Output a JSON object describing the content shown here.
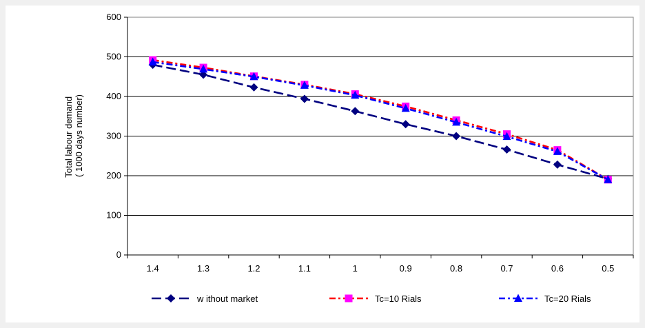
{
  "chart_data": {
    "type": "line",
    "categories": [
      "1.4",
      "1.3",
      "1.2",
      "1.1",
      "1",
      "0.9",
      "0.8",
      "0.7",
      "0.6",
      "0.5"
    ],
    "ylim": [
      0,
      600
    ],
    "yticks": [
      "0",
      "100",
      "200",
      "300",
      "400",
      "500",
      "600"
    ],
    "ylabel": [
      "Total labour demand",
      "( 1000 days number)"
    ],
    "xlabel": "",
    "grid": "horizontal",
    "legend_position": "bottom",
    "series": [
      {
        "name": "w ithout market",
        "color": "#000080",
        "marker": "diamond",
        "dash": "long-dash",
        "values": [
          480,
          455,
          423,
          394,
          363,
          330,
          300,
          266,
          228,
          192
        ]
      },
      {
        "name": "Tc=10 Rials",
        "color": "#ff0000",
        "marker_color": "#ff00ff",
        "marker": "square",
        "dash": "dash-dot",
        "values": [
          492,
          473,
          451,
          430,
          406,
          375,
          340,
          305,
          265,
          190
        ]
      },
      {
        "name": "Tc=20 Rials",
        "color": "#0000ff",
        "marker": "triangle",
        "dash": "dash-dot",
        "values": [
          487,
          469,
          450,
          428,
          403,
          370,
          335,
          299,
          261,
          190
        ]
      }
    ]
  }
}
